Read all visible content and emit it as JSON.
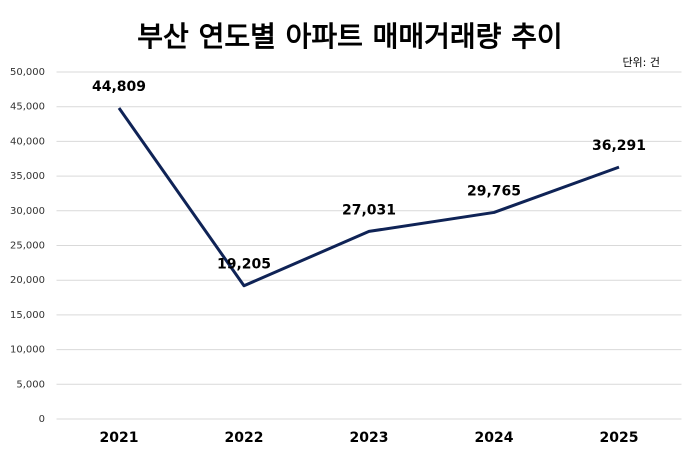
{
  "chart_data": {
    "type": "line",
    "title": "부산 연도별 아파트 매매거래량 추이",
    "unit_note": "단위: 건",
    "categories": [
      "2021",
      "2022",
      "2023",
      "2024",
      "2025"
    ],
    "series": [
      {
        "name": "매매거래량",
        "color": "#0f2356",
        "values": [
          44809,
          19205,
          27031,
          29765,
          36291
        ],
        "value_labels": [
          "44,809",
          "19,205",
          "27,031",
          "29,765",
          "36,291"
        ]
      }
    ],
    "ylim": [
      0,
      50000
    ],
    "yticks": [
      0,
      {
        "value": 5000,
        "label": "5,000"
      },
      {
        "value": 10000,
        "label": "10,000"
      },
      {
        "value": 15000,
        "label": "15,000"
      },
      {
        "value": 20000,
        "label": "20,000"
      },
      {
        "value": 25000,
        "label": "25,000"
      },
      {
        "value": 30000,
        "label": "30,000"
      },
      {
        "value": 35000,
        "label": "35,000"
      },
      {
        "value": 40000,
        "label": "40,000"
      },
      {
        "value": 45000,
        "label": "45,000"
      },
      {
        "value": 50000,
        "label": "50,000"
      }
    ],
    "grid": true,
    "legend": false
  }
}
